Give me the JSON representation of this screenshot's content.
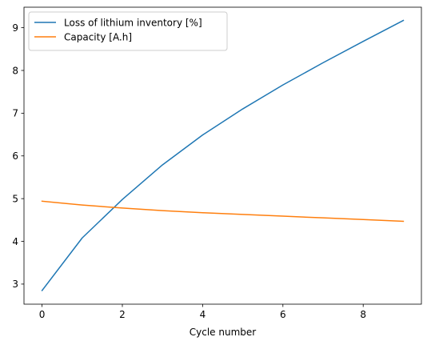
{
  "chart_data": {
    "type": "line",
    "title": "",
    "xlabel": "Cycle number",
    "ylabel": "",
    "x": [
      0,
      1,
      2,
      3,
      4,
      5,
      6,
      7,
      8,
      9
    ],
    "xlim": [
      -0.45,
      9.45
    ],
    "ylim": [
      2.53,
      9.48
    ],
    "xticks": [
      0,
      2,
      4,
      6,
      8
    ],
    "yticks": [
      3,
      4,
      5,
      6,
      7,
      8,
      9
    ],
    "grid": false,
    "legend_position": "top-left",
    "series": [
      {
        "name": "Loss of lithium inventory [%]",
        "color": "#1f77b4",
        "values": [
          2.85,
          4.08,
          4.98,
          5.79,
          6.49,
          7.1,
          7.66,
          8.18,
          8.68,
          9.17
        ]
      },
      {
        "name": "Capacity [A.h]",
        "color": "#ff7f0e",
        "values": [
          4.94,
          4.85,
          4.78,
          4.72,
          4.67,
          4.63,
          4.59,
          4.55,
          4.51,
          4.47
        ]
      }
    ]
  }
}
